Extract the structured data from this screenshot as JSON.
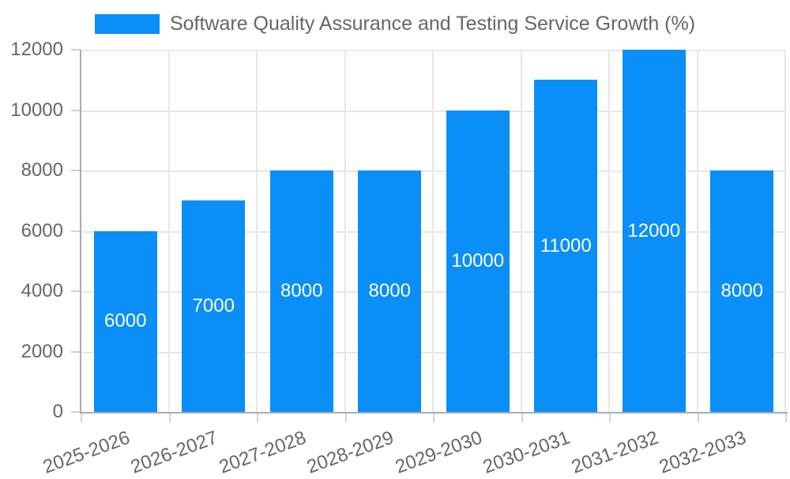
{
  "legend": {
    "label": "Software Quality Assurance and Testing Service Growth (%)",
    "swatch_color": "#0A8FF8"
  },
  "chart_data": {
    "type": "bar",
    "title": "Software Quality Assurance and Testing Service Growth (%)",
    "categories": [
      "2025-2026",
      "2026-2027",
      "2027-2028",
      "2028-2029",
      "2029-2030",
      "2030-2031",
      "2031-2032",
      "2032-2033"
    ],
    "values": [
      6000,
      7000,
      8000,
      8000,
      10000,
      11000,
      12000,
      8000
    ],
    "xlabel": "",
    "ylabel": "",
    "ylim": [
      0,
      12000
    ],
    "yticks": [
      0,
      2000,
      4000,
      6000,
      8000,
      10000,
      12000
    ],
    "grid": true,
    "legend_position": "top",
    "x_label_rotation_deg": -20,
    "bar_color": "#0A8FF8",
    "value_label_color": "#ffffff"
  },
  "colors": {
    "background": "#ffffff",
    "grid_line": "#e7e7e7",
    "axis_line": "#ababab",
    "tick_mark": "#d2d2d2",
    "tick_label": "#666666",
    "legend_text": "#666666",
    "bar": "#0A8FF8"
  }
}
